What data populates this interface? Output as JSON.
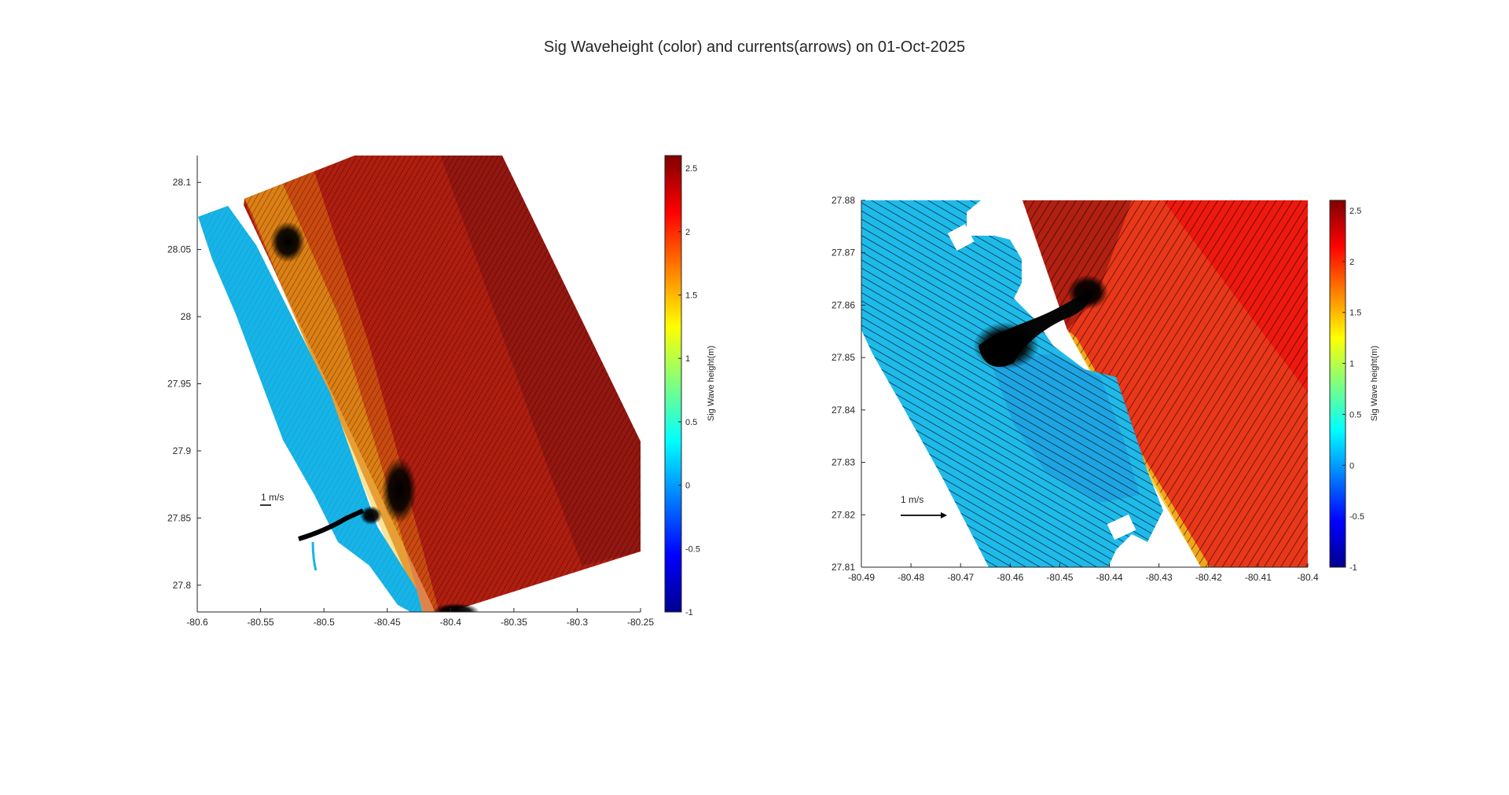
{
  "title": "Sig Waveheight (color) and currents(arrows) on 01-Oct-2025",
  "chart_data": [
    {
      "type": "heatmap",
      "panel": "regional",
      "xlim": [
        -80.6,
        -80.25
      ],
      "ylim": [
        27.78,
        28.12
      ],
      "xticks": [
        "-80.6",
        "-80.55",
        "-80.5",
        "-80.45",
        "-80.4",
        "-80.35",
        "-80.3",
        "-80.25"
      ],
      "yticks": [
        "27.8",
        "27.85",
        "27.9",
        "27.95",
        "28",
        "28.05",
        "28.1"
      ],
      "colorbar": {
        "label": "Sig Wave height(m)",
        "range": [
          -1,
          2.6
        ],
        "ticks": [
          "-1",
          "-0.5",
          "0",
          "0.5",
          "1",
          "1.5",
          "2",
          "2.5"
        ]
      },
      "reference_arrow": {
        "label": "1 m/s",
        "speed": 1
      },
      "regions": {
        "lagoon_wave_height": 0.2,
        "ocean_nearshore": 1.8,
        "ocean_offshore": 2.3,
        "colorscale": "jet"
      }
    },
    {
      "type": "heatmap",
      "panel": "inlet zoom",
      "xlim": [
        -80.49,
        -80.4
      ],
      "ylim": [
        27.81,
        27.88
      ],
      "xticks": [
        "-80.49",
        "-80.48",
        "-80.47",
        "-80.46",
        "-80.45",
        "-80.44",
        "-80.43",
        "-80.42",
        "-80.41",
        "-80.4"
      ],
      "yticks": [
        "27.81",
        "27.82",
        "27.83",
        "27.84",
        "27.85",
        "27.86",
        "27.87",
        "27.88"
      ],
      "colorbar": {
        "label": "Sig Wave height(m)",
        "range": [
          -1,
          2.6
        ],
        "ticks": [
          "-1",
          "-0.5",
          "0",
          "0.5",
          "1",
          "1.5",
          "2",
          "2.5"
        ]
      },
      "reference_arrow": {
        "label": "1 m/s",
        "speed": 1
      },
      "regions": {
        "lagoon_wave_height": 0.2,
        "ocean_nearshore": 1.9,
        "ocean_offshore": 2.3,
        "colorscale": "jet"
      }
    }
  ]
}
